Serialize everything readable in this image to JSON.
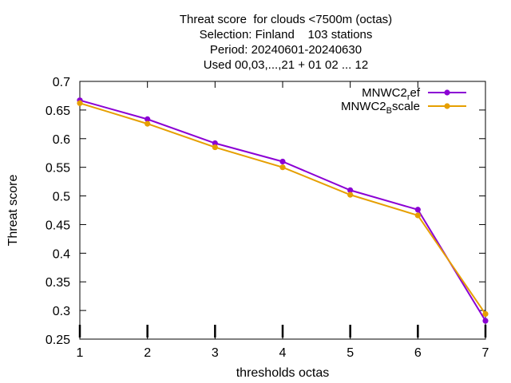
{
  "chart_data": {
    "type": "line",
    "title_lines": [
      "Threat score  for clouds <7500m (octas)",
      "Selection: Finland    103 stations",
      "Period: 20240601-20240630",
      "Used 00,03,...,21 + 01 02 ... 12"
    ],
    "xlabel": "thresholds octas",
    "ylabel": "Threat score",
    "xlim": [
      1,
      7
    ],
    "ylim": [
      0.25,
      0.7
    ],
    "x_ticks": [
      "1",
      "2",
      "3",
      "4",
      "5",
      "6",
      "7"
    ],
    "y_ticks": [
      "0.25",
      "0.3",
      "0.35",
      "0.4",
      "0.45",
      "0.5",
      "0.55",
      "0.6",
      "0.65",
      "0.7"
    ],
    "grid": false,
    "legend_position": "top-right",
    "x": [
      1,
      2,
      3,
      4,
      5,
      6,
      7
    ],
    "series": [
      {
        "name": "MNWC2_ref",
        "legend_base": "MNWC2",
        "legend_sub": "r",
        "legend_rest": "ef",
        "color": "#8b00d4",
        "values": [
          0.667,
          0.634,
          0.592,
          0.56,
          0.51,
          0.476,
          0.282
        ]
      },
      {
        "name": "MNWC2_Bscale",
        "legend_base": "MNWC2",
        "legend_sub": "B",
        "legend_rest": "scale",
        "color": "#e69f00",
        "values": [
          0.662,
          0.626,
          0.585,
          0.55,
          0.502,
          0.466,
          0.294
        ]
      }
    ]
  }
}
